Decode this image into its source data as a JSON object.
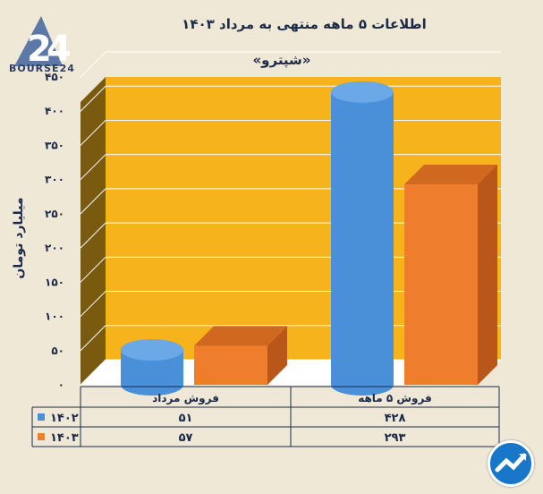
{
  "header": {
    "title": "اطلاعات ۵ ماهه منتهی به مرداد ۱۴۰۳",
    "subtitle": "«شپترو»",
    "logo_text": "BOURSE24"
  },
  "chart_data": {
    "type": "bar",
    "title": "اطلاعات ۵ ماهه منتهی به مرداد ۱۴۰۳",
    "subtitle": "«شپترو»",
    "ylabel": "میلیارد تومان",
    "ylim": [
      0,
      450
    ],
    "yticks": [
      "۴۵۰",
      "۴۰۰",
      "۳۵۰",
      "۳۰۰",
      "۲۵۰",
      "۲۰۰",
      "۱۵۰",
      "۱۰۰",
      "۵۰",
      "۰"
    ],
    "ytick_values": [
      450,
      400,
      350,
      300,
      250,
      200,
      150,
      100,
      50,
      0
    ],
    "categories": [
      "فروش مرداد",
      "فروش ۵ ماهه"
    ],
    "series": [
      {
        "name": "۱۴۰۲",
        "values": [
          51,
          428
        ],
        "labels": [
          "۵۱",
          "۴۲۸"
        ],
        "color": "#4a90d9",
        "shape": "cylinder"
      },
      {
        "name": "۱۴۰۳",
        "values": [
          57,
          293
        ],
        "labels": [
          "۵۷",
          "۲۹۳"
        ],
        "color": "#ef7d2e",
        "shape": "box"
      }
    ],
    "background_color": "#f6b31b",
    "grid": true,
    "legend": "data-table"
  }
}
